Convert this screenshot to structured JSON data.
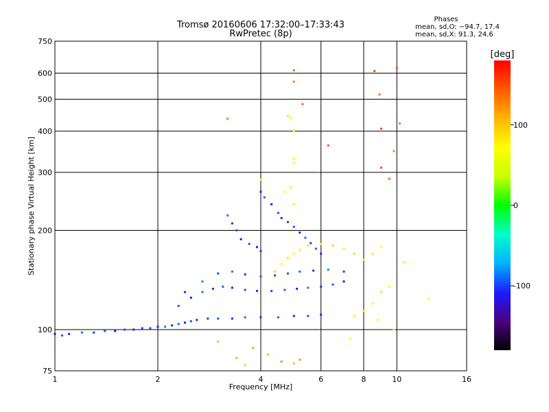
{
  "header": {
    "title": "Tromsø 20160606 17:32:00–17:33:43",
    "subtitle": "RwPretec (8p)",
    "phase_title": "Phases",
    "phase_o": "mean, sd,O: −94.7, 17.4",
    "phase_x": "mean, sd,X:  91.3, 24.6"
  },
  "chart_data": {
    "type": "scatter",
    "title": "Tromsø 20160606 17:32:00–17:33:43",
    "subtitle": "RwPretec (8p)",
    "xlabel": "Frequency [MHz]",
    "ylabel": "Stationary phase Virtual Height [km]",
    "x_scale": "log",
    "y_scale": "log",
    "xlim": [
      1,
      16
    ],
    "ylim": [
      75,
      750
    ],
    "x_ticks": [
      1,
      2,
      4,
      6,
      8,
      10,
      16
    ],
    "y_ticks": [
      75,
      100,
      200,
      300,
      400,
      500,
      600,
      750
    ],
    "grid": true,
    "colorbar": {
      "label": "[deg]",
      "range": [
        -180,
        180
      ],
      "ticks": [
        -100,
        0,
        100
      ],
      "colormap": [
        "#000000",
        "#4b0082",
        "#1c1cff",
        "#00b4ff",
        "#00ffc8",
        "#00ff00",
        "#c8ff00",
        "#ffff00",
        "#ffb400",
        "#ff5a00",
        "#ff0000"
      ]
    },
    "series": [
      {
        "values": [
          [
            1.0,
            97
          ],
          [
            1.05,
            96
          ],
          [
            1.1,
            97
          ],
          [
            1.2,
            98
          ],
          [
            1.3,
            98
          ],
          [
            1.4,
            99
          ],
          [
            1.5,
            99
          ],
          [
            1.6,
            100
          ],
          [
            1.7,
            100
          ],
          [
            1.8,
            101
          ],
          [
            1.9,
            101
          ],
          [
            2.0,
            102
          ],
          [
            2.1,
            102
          ],
          [
            2.2,
            103
          ],
          [
            2.3,
            104
          ],
          [
            2.4,
            105
          ],
          [
            2.5,
            106
          ],
          [
            2.6,
            107
          ],
          [
            2.8,
            108
          ],
          [
            3.0,
            108
          ],
          [
            3.3,
            108
          ],
          [
            3.6,
            109
          ],
          [
            4.0,
            109
          ],
          [
            4.5,
            109
          ],
          [
            5.0,
            110
          ],
          [
            5.5,
            110
          ],
          [
            6.0,
            111
          ]
        ],
        "phase": -100
      },
      {
        "values": [
          [
            2.3,
            118
          ],
          [
            2.5,
            125
          ],
          [
            2.7,
            130
          ],
          [
            2.9,
            133
          ],
          [
            3.1,
            135
          ],
          [
            3.3,
            134
          ],
          [
            3.6,
            132
          ],
          [
            3.9,
            131
          ],
          [
            4.3,
            131
          ],
          [
            4.7,
            132
          ],
          [
            5.1,
            133
          ],
          [
            5.5,
            134
          ],
          [
            6.0,
            135
          ],
          [
            6.5,
            137
          ],
          [
            7.0,
            140
          ]
        ],
        "phase": -100
      },
      {
        "values": [
          [
            2.4,
            130
          ],
          [
            2.7,
            140
          ],
          [
            3.0,
            148
          ],
          [
            3.3,
            150
          ],
          [
            3.6,
            147
          ],
          [
            4.0,
            145
          ],
          [
            4.4,
            146
          ],
          [
            4.8,
            148
          ],
          [
            5.2,
            150
          ],
          [
            5.7,
            151
          ],
          [
            6.3,
            152
          ],
          [
            7.0,
            150
          ]
        ],
        "phase": -95
      },
      {
        "values": [
          [
            3.2,
            222
          ],
          [
            3.3,
            210
          ],
          [
            3.4,
            200
          ],
          [
            3.5,
            188
          ],
          [
            3.7,
            182
          ],
          [
            3.9,
            178
          ],
          [
            4.0,
            173
          ]
        ],
        "phase": -100
      },
      {
        "values": [
          [
            4.0,
            262
          ],
          [
            4.1,
            252
          ],
          [
            4.3,
            240
          ],
          [
            4.5,
            226
          ],
          [
            4.6,
            218
          ],
          [
            4.8,
            212
          ],
          [
            5.0,
            205
          ],
          [
            5.2,
            197
          ],
          [
            5.4,
            190
          ],
          [
            5.6,
            183
          ],
          [
            5.8,
            176
          ],
          [
            6.0,
            170
          ]
        ],
        "phase": -100
      },
      {
        "values": [
          [
            4.4,
            150
          ],
          [
            4.6,
            158
          ],
          [
            4.8,
            165
          ],
          [
            5.0,
            170
          ],
          [
            5.2,
            175
          ],
          [
            5.5,
            180
          ],
          [
            6.0,
            182
          ],
          [
            6.5,
            180
          ],
          [
            7.0,
            176
          ],
          [
            7.5,
            170
          ],
          [
            8.0,
            163
          ],
          [
            8.5,
            170
          ],
          [
            9.0,
            178
          ]
        ],
        "phase": 80
      },
      {
        "values": [
          [
            4.8,
            445
          ],
          [
            4.9,
            440
          ],
          [
            5.0,
            402
          ],
          [
            5.0,
            330
          ],
          [
            5.0,
            320
          ],
          [
            4.9,
            270
          ],
          [
            4.7,
            262
          ],
          [
            5.0,
            240
          ],
          [
            4.0,
            285
          ]
        ],
        "phase": 60
      },
      {
        "values": [
          [
            5.0,
            612
          ],
          [
            5.0,
            565
          ],
          [
            5.3,
            483
          ],
          [
            6.3,
            362
          ],
          [
            3.2,
            436
          ],
          [
            8.6,
            609
          ],
          [
            8.9,
            517
          ],
          [
            9.0,
            407
          ],
          [
            9.8,
            348
          ],
          [
            10.0,
            622
          ],
          [
            10.2,
            422
          ],
          [
            9.5,
            287
          ],
          [
            9.0,
            310
          ]
        ],
        "phase": 140
      },
      {
        "values": [
          [
            3.0,
            92
          ],
          [
            3.4,
            82
          ],
          [
            3.8,
            88
          ],
          [
            4.2,
            84
          ],
          [
            4.6,
            80
          ],
          [
            5.0,
            79
          ],
          [
            5.2,
            81
          ],
          [
            3.6,
            78
          ]
        ],
        "phase": 110
      },
      {
        "values": [
          [
            7.5,
            110
          ],
          [
            8.0,
            114
          ],
          [
            8.5,
            120
          ],
          [
            9.0,
            130
          ],
          [
            9.5,
            135
          ],
          [
            10.5,
            160
          ],
          [
            12.4,
            124
          ],
          [
            9.8,
            100
          ],
          [
            7.3,
            94
          ],
          [
            8.8,
            107
          ]
        ],
        "phase": 70
      }
    ]
  }
}
